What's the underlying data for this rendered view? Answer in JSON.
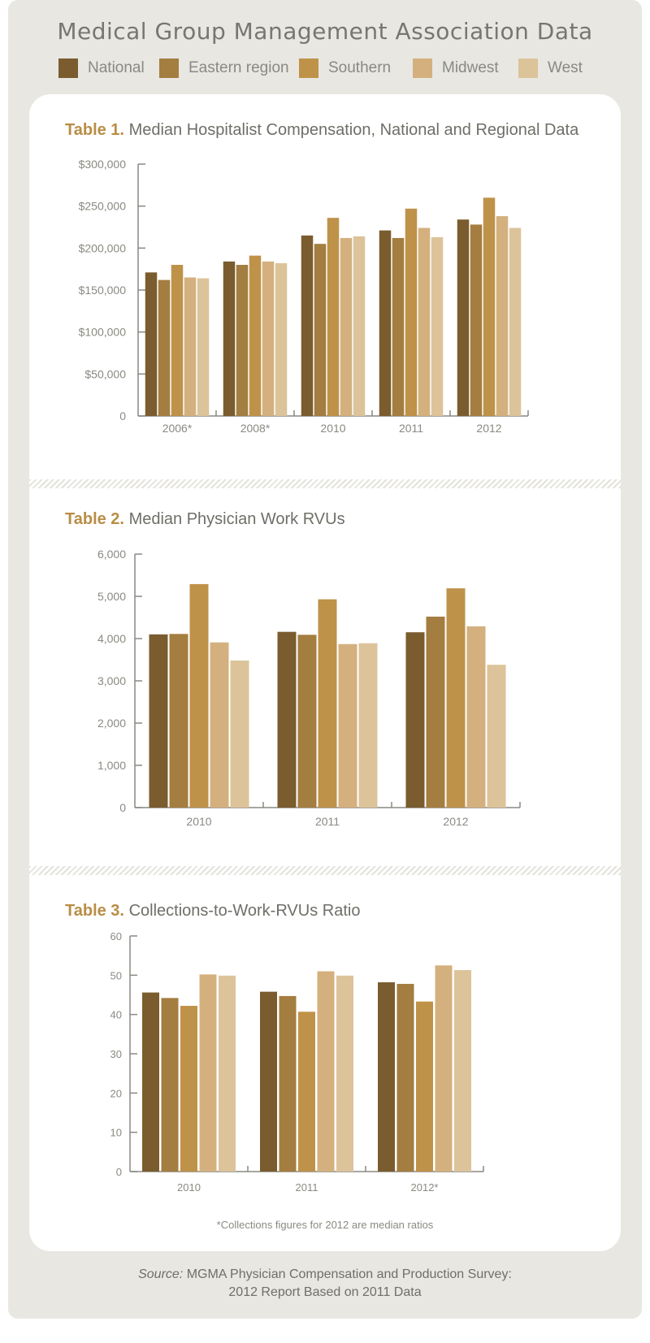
{
  "header": {
    "title": "Medical Group Management Association Data"
  },
  "legend": [
    {
      "name": "National",
      "color": "#7a5c2e"
    },
    {
      "name": "Eastern region",
      "color": "#a47d40"
    },
    {
      "name": "Southern",
      "color": "#bf9249"
    },
    {
      "name": "Midwest",
      "color": "#d4b07e"
    },
    {
      "name": "West",
      "color": "#dcc39a"
    }
  ],
  "chart_data": [
    {
      "type": "bar",
      "label": "Table 1.",
      "title": "Median Hospitalist Compensation, National and Regional Data",
      "categories": [
        "2006*",
        "2008*",
        "2010",
        "2011",
        "2012"
      ],
      "yticks": [
        "0",
        "$50,000",
        "$100,000",
        "$150,000",
        "$200,000",
        "$250,000",
        "$300,000"
      ],
      "ylim": [
        0,
        300000
      ],
      "series": [
        {
          "name": "National",
          "values": [
            171000,
            184000,
            215000,
            221000,
            234000
          ]
        },
        {
          "name": "Eastern region",
          "values": [
            162000,
            180000,
            205000,
            212000,
            228000
          ]
        },
        {
          "name": "Southern",
          "values": [
            180000,
            191000,
            236000,
            247000,
            260000
          ]
        },
        {
          "name": "Midwest",
          "values": [
            165000,
            184000,
            212000,
            224000,
            238000
          ]
        },
        {
          "name": "West",
          "values": [
            164000,
            182000,
            214000,
            213000,
            224000
          ]
        }
      ]
    },
    {
      "type": "bar",
      "label": "Table 2.",
      "title": "Median Physician Work RVUs",
      "categories": [
        "2010",
        "2011",
        "2012"
      ],
      "yticks": [
        "0",
        "1,000",
        "2,000",
        "3,000",
        "4,000",
        "5,000",
        "6,000"
      ],
      "ylim": [
        0,
        6000
      ],
      "series": [
        {
          "name": "National",
          "values": [
            4100,
            4160,
            4150
          ]
        },
        {
          "name": "Eastern region",
          "values": [
            4110,
            4090,
            4520
          ]
        },
        {
          "name": "Southern",
          "values": [
            5290,
            4930,
            5190
          ]
        },
        {
          "name": "Midwest",
          "values": [
            3910,
            3870,
            4290
          ]
        },
        {
          "name": "West",
          "values": [
            3480,
            3890,
            3380
          ]
        }
      ]
    },
    {
      "type": "bar",
      "label": "Table 3.",
      "title": "Collections-to-Work-RVUs Ratio",
      "categories": [
        "2010",
        "2011",
        "2012*"
      ],
      "yticks": [
        "0",
        "10",
        "20",
        "30",
        "40",
        "50",
        "60"
      ],
      "ylim": [
        0,
        60
      ],
      "series": [
        {
          "name": "National",
          "values": [
            45.6,
            45.8,
            48.2
          ]
        },
        {
          "name": "Eastern region",
          "values": [
            44.2,
            44.7,
            47.8
          ]
        },
        {
          "name": "Southern",
          "values": [
            42.2,
            40.7,
            43.3
          ]
        },
        {
          "name": "Midwest",
          "values": [
            50.2,
            51.0,
            52.5
          ]
        },
        {
          "name": "West",
          "values": [
            49.9,
            49.9,
            51.3
          ]
        }
      ],
      "footnote": "*Collections figures for 2012 are median ratios"
    }
  ],
  "source": {
    "label": "Source:",
    "line1": "MGMA Physician Compensation and Production Survey:",
    "line2": "2012 Report Based on 2011 Data"
  }
}
